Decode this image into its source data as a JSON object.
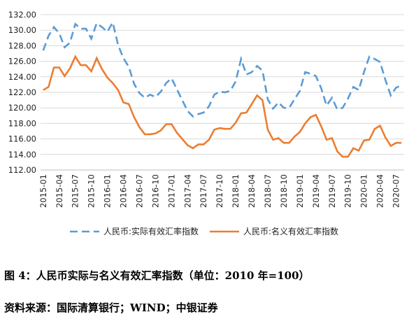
{
  "caption": "图 4：人民币实际与名义有效汇率指数（单位：2010 年=100）",
  "source": "资料来源：国际清算银行；WIND；中银证券",
  "chart_data": {
    "type": "line",
    "title": "",
    "xlabel": "",
    "ylabel": "",
    "ylim": [
      112,
      132
    ],
    "y_ticks": [
      "112.00",
      "114.00",
      "116.00",
      "118.00",
      "120.00",
      "122.00",
      "124.00",
      "126.00",
      "128.00",
      "130.00",
      "132.00"
    ],
    "x_tick_labels": [
      "2015-01",
      "2015-04",
      "2015-07",
      "2015-10",
      "2016-01",
      "2016-04",
      "2016-07",
      "2016-10",
      "2017-01",
      "2017-04",
      "2017-07",
      "2017-10",
      "2018-01",
      "2018-04",
      "2018-07",
      "2018-10",
      "2019-01",
      "2019-04",
      "2019-07",
      "2019-10",
      "2020-01",
      "2020-04",
      "2020-07"
    ],
    "legend_position": "bottom",
    "colors": {
      "real": "#5b9bd5",
      "nominal": "#ed7d31",
      "grid": "#d9d9d9",
      "axis": "#bfbfbf"
    },
    "series": [
      {
        "name": "人民币:实际有效汇率指数",
        "style": "dashed",
        "values": [
          127.4,
          129.3,
          130.4,
          129.6,
          127.8,
          128.4,
          130.8,
          130.2,
          130.2,
          128.9,
          130.9,
          130.4,
          129.8,
          131.0,
          128.1,
          126.4,
          125.3,
          123.1,
          121.9,
          121.3,
          121.7,
          121.4,
          122.1,
          123.2,
          123.8,
          122.4,
          121.0,
          119.6,
          118.9,
          119.2,
          119.4,
          120.2,
          121.7,
          122.1,
          122.0,
          122.2,
          123.4,
          126.3,
          124.3,
          124.6,
          125.4,
          124.8,
          121.1,
          119.9,
          120.7,
          120.0,
          120.0,
          121.1,
          122.2,
          124.6,
          124.4,
          124.1,
          122.5,
          120.3,
          121.3,
          119.8,
          120.0,
          121.2,
          122.7,
          122.3,
          124.6,
          126.6,
          126.3,
          125.9,
          123.6,
          121.6,
          122.6,
          122.9
        ]
      },
      {
        "name": "人民币:名义有效汇率指数",
        "style": "solid",
        "values": [
          122.3,
          122.7,
          125.2,
          125.2,
          124.1,
          125.1,
          126.6,
          125.5,
          125.5,
          124.7,
          126.4,
          125.0,
          123.9,
          123.2,
          122.3,
          120.7,
          120.5,
          118.8,
          117.5,
          116.6,
          116.6,
          116.7,
          117.1,
          117.9,
          117.9,
          116.8,
          116.0,
          115.2,
          114.8,
          115.3,
          115.3,
          115.9,
          117.2,
          117.4,
          117.3,
          117.3,
          118.1,
          119.3,
          119.4,
          120.5,
          121.6,
          121.0,
          117.2,
          115.9,
          116.1,
          115.5,
          115.5,
          116.3,
          116.9,
          118.0,
          118.8,
          119.1,
          117.6,
          115.9,
          116.1,
          114.4,
          113.7,
          113.7,
          114.8,
          114.5,
          115.8,
          115.9,
          117.3,
          117.7,
          116.2,
          115.1,
          115.5,
          115.5
        ]
      }
    ]
  }
}
